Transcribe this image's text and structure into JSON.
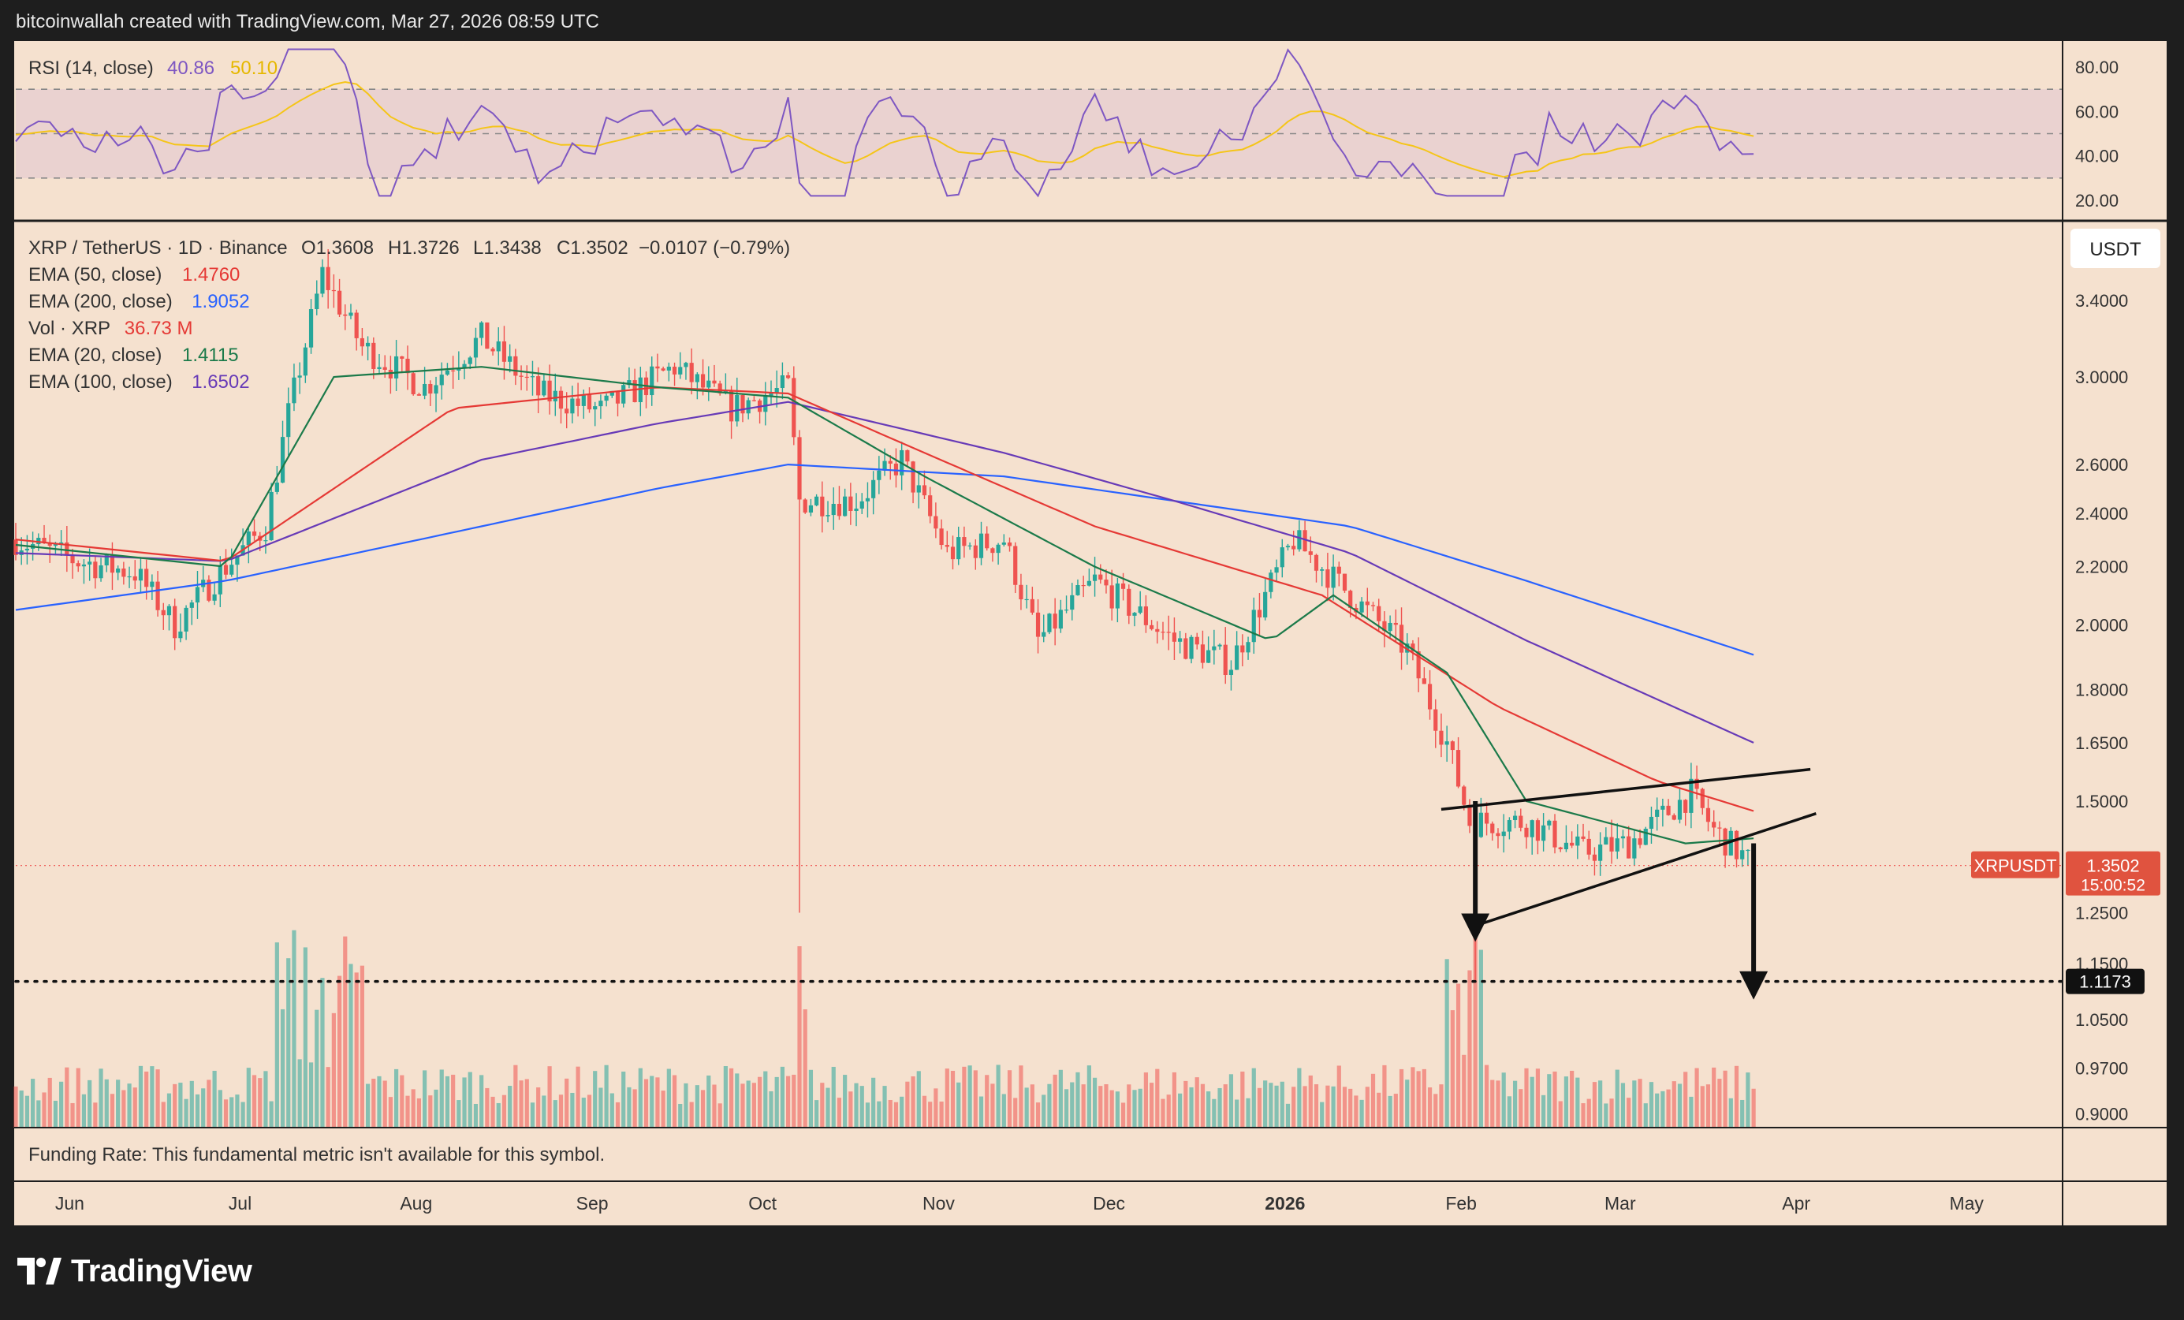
{
  "header": {
    "text": "bitcoinwallah created with TradingView.com, Mar 27, 2026 08:59 UTC"
  },
  "footer": {
    "brand": "TradingView"
  },
  "colors": {
    "panel_bg": "#f5e1cf",
    "frame": "#1e1e1e",
    "up": "#26a69a",
    "down": "#ef5350",
    "ema50": "#e53935",
    "ema200": "#2962ff",
    "ema20": "#1b7a4a",
    "ema100": "#673ab7",
    "rsi": "#7e57c2",
    "rsi_ma": "#f5c518"
  },
  "rsi_pane": {
    "title": "RSI (14, close)",
    "value": "40.86",
    "ma_value": "50.10",
    "ticks": [
      "80.00",
      "60.00",
      "40.00",
      "20.00"
    ]
  },
  "legend": {
    "symbol": "XRP / TetherUS · 1D · Binance",
    "open": "O1.3608",
    "high": "H1.3726",
    "low": "L1.3438",
    "close": "C1.3502",
    "change": "−0.0107 (−0.79%)",
    "indicators": [
      {
        "name": "EMA (50, close)",
        "value": "1.4760",
        "color": "#e53935"
      },
      {
        "name": "EMA (200, close)",
        "value": "1.9052",
        "color": "#2962ff"
      },
      {
        "name": "Vol · XRP",
        "value": "36.73 M",
        "color": "#e53935"
      },
      {
        "name": "EMA (20, close)",
        "value": "1.4115",
        "color": "#1b7a4a"
      },
      {
        "name": "EMA (100, close)",
        "value": "1.6502",
        "color": "#673ab7"
      }
    ]
  },
  "price_axis": {
    "currency": "USDT",
    "ticks": [
      "3.4000",
      "3.0000",
      "2.6000",
      "2.4000",
      "2.2000",
      "2.0000",
      "1.8000",
      "1.6500",
      "1.5000",
      "1.2500",
      "1.1500",
      "1.0500",
      "0.9700",
      "0.9000"
    ],
    "symbol_label": "XRPUSDT",
    "last_price": "1.3502",
    "countdown": "15:00:52",
    "level_label": "1.1173"
  },
  "time_axis": {
    "labels": [
      "Jun",
      "Jul",
      "Aug",
      "Sep",
      "Oct",
      "Nov",
      "Dec",
      "2026",
      "Feb",
      "Mar",
      "Apr",
      "May"
    ]
  },
  "funding_note": "Funding Rate: This fundamental metric isn't available for this symbol.",
  "chart_data": {
    "type": "candlestick",
    "symbol": "XRP / TetherUS · 1D · Binance",
    "y_scale": "log",
    "ylim": [
      0.88,
      3.75
    ],
    "last": {
      "open": 1.3608,
      "high": 1.3726,
      "low": 1.3438,
      "close": 1.3502,
      "change": -0.0107,
      "change_pct": -0.79
    },
    "indicator_values": {
      "ema20": 1.4115,
      "ema50": 1.476,
      "ema100": 1.6502,
      "ema200": 1.9052,
      "volume_m": 36.73,
      "rsi14": 40.86,
      "rsi_ma": 50.1
    },
    "horizontal_level": 1.1173,
    "rsi_bands": [
      70,
      50,
      30
    ],
    "approx_close_path": [
      [
        "2025-05-25",
        2.3
      ],
      [
        "2025-06-05",
        2.22
      ],
      [
        "2025-06-15",
        2.18
      ],
      [
        "2025-06-22",
        2.0
      ],
      [
        "2025-06-30",
        2.18
      ],
      [
        "2025-07-08",
        2.35
      ],
      [
        "2025-07-12",
        2.82
      ],
      [
        "2025-07-18",
        3.55
      ],
      [
        "2025-07-25",
        3.15
      ],
      [
        "2025-08-05",
        2.95
      ],
      [
        "2025-08-15",
        3.2
      ],
      [
        "2025-08-25",
        2.92
      ],
      [
        "2025-09-05",
        2.84
      ],
      [
        "2025-09-18",
        3.05
      ],
      [
        "2025-09-28",
        2.85
      ],
      [
        "2025-10-08",
        2.95
      ],
      [
        "2025-10-10",
        2.45
      ],
      [
        "2025-10-20",
        2.45
      ],
      [
        "2025-10-28",
        2.62
      ],
      [
        "2025-11-05",
        2.25
      ],
      [
        "2025-11-15",
        2.3
      ],
      [
        "2025-11-21",
        1.95
      ],
      [
        "2025-12-01",
        2.15
      ],
      [
        "2025-12-15",
        1.95
      ],
      [
        "2025-12-25",
        1.88
      ],
      [
        "2026-01-05",
        2.3
      ],
      [
        "2026-01-15",
        2.1
      ],
      [
        "2026-01-25",
        1.92
      ],
      [
        "2026-02-01",
        1.65
      ],
      [
        "2026-02-05",
        1.45
      ],
      [
        "2026-02-15",
        1.45
      ],
      [
        "2026-02-25",
        1.38
      ],
      [
        "2026-03-05",
        1.4
      ],
      [
        "2026-03-16",
        1.52
      ],
      [
        "2026-03-20",
        1.43
      ],
      [
        "2026-03-27",
        1.3502
      ]
    ],
    "approx_ema_paths": {
      "ema20": [
        [
          "2025-05-25",
          2.28
        ],
        [
          "2025-07-01",
          2.2
        ],
        [
          "2025-07-20",
          3.0
        ],
        [
          "2025-08-15",
          3.05
        ],
        [
          "2025-09-15",
          2.95
        ],
        [
          "2025-10-08",
          2.9
        ],
        [
          "2025-11-01",
          2.55
        ],
        [
          "2025-12-01",
          2.2
        ],
        [
          "2026-01-01",
          1.95
        ],
        [
          "2026-01-12",
          2.1
        ],
        [
          "2026-02-01",
          1.85
        ],
        [
          "2026-02-15",
          1.5
        ],
        [
          "2026-03-15",
          1.4
        ],
        [
          "2026-03-27",
          1.4115
        ]
      ],
      "ema50": [
        [
          "2025-05-25",
          2.3
        ],
        [
          "2025-07-01",
          2.22
        ],
        [
          "2025-08-10",
          2.85
        ],
        [
          "2025-09-15",
          2.95
        ],
        [
          "2025-10-08",
          2.92
        ],
        [
          "2025-11-01",
          2.65
        ],
        [
          "2025-12-01",
          2.35
        ],
        [
          "2026-01-10",
          2.1
        ],
        [
          "2026-02-10",
          1.75
        ],
        [
          "2026-03-10",
          1.55
        ],
        [
          "2026-03-27",
          1.476
        ]
      ],
      "ema100": [
        [
          "2025-05-25",
          2.25
        ],
        [
          "2025-07-01",
          2.22
        ],
        [
          "2025-08-15",
          2.62
        ],
        [
          "2025-09-15",
          2.78
        ],
        [
          "2025-10-08",
          2.88
        ],
        [
          "2025-11-15",
          2.65
        ],
        [
          "2025-12-15",
          2.45
        ],
        [
          "2026-01-15",
          2.25
        ],
        [
          "2026-02-15",
          1.95
        ],
        [
          "2026-03-27",
          1.6502
        ]
      ],
      "ema200": [
        [
          "2025-05-25",
          2.05
        ],
        [
          "2025-07-01",
          2.15
        ],
        [
          "2025-08-15",
          2.35
        ],
        [
          "2025-09-15",
          2.5
        ],
        [
          "2025-10-08",
          2.6
        ],
        [
          "2025-11-15",
          2.55
        ],
        [
          "2025-12-15",
          2.45
        ],
        [
          "2026-01-15",
          2.35
        ],
        [
          "2026-02-15",
          2.15
        ],
        [
          "2026-03-27",
          1.9052
        ]
      ]
    },
    "annotations": [
      {
        "type": "trendline",
        "label": "upper",
        "from": [
          "2026-01-31",
          1.48
        ],
        "to": [
          "2026-04-06",
          1.58
        ]
      },
      {
        "type": "trendline",
        "label": "lower",
        "from": [
          "2026-02-05",
          1.22
        ],
        "to": [
          "2026-04-07",
          1.47
        ]
      },
      {
        "type": "arrow",
        "from": [
          "2026-02-06",
          1.5
        ],
        "to": [
          "2026-02-06",
          1.22
        ]
      },
      {
        "type": "arrow",
        "from": [
          "2026-03-27",
          1.4
        ],
        "to": [
          "2026-03-27",
          1.11
        ]
      }
    ]
  }
}
